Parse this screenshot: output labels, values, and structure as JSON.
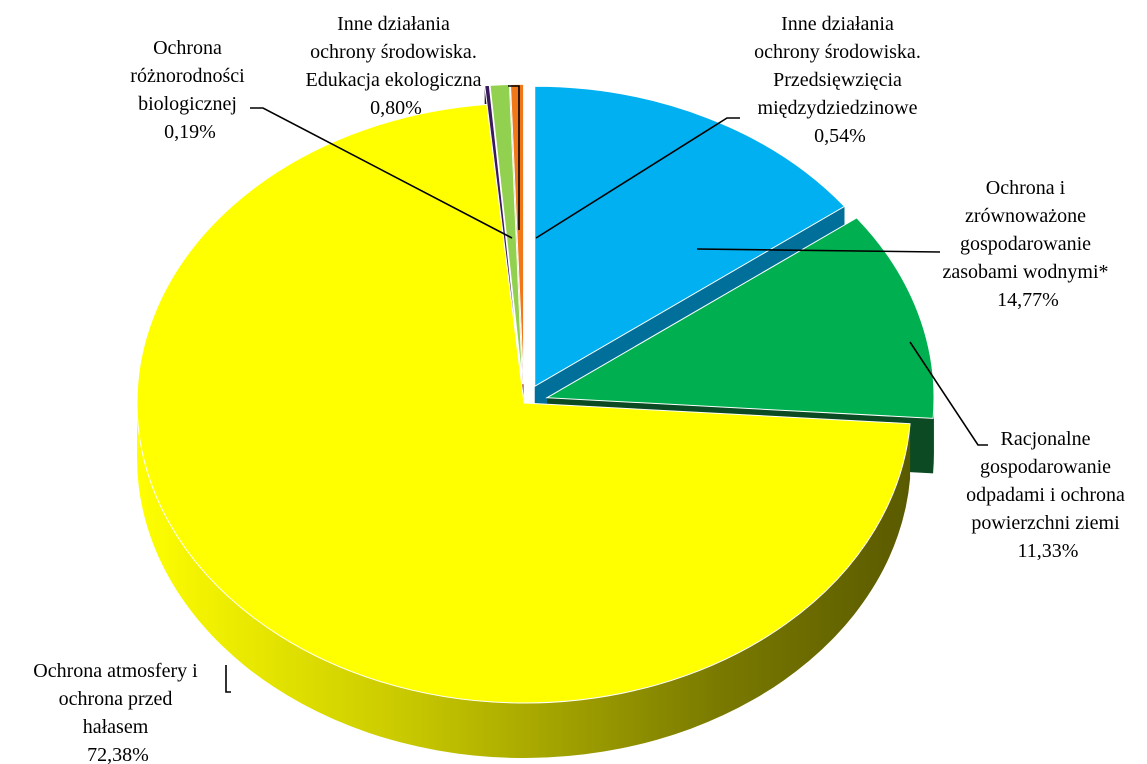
{
  "chart_data": {
    "type": "pie",
    "title": "",
    "slices": [
      {
        "label_lines": [
          "Ochrona i",
          "zrównoważone",
          "gospodarowanie",
          "zasobami wodnymi*"
        ],
        "value_text": "14,77%",
        "value": 14.77,
        "color": "#00B0F0",
        "side_color": "#00709A",
        "exploded": true
      },
      {
        "label_lines": [
          "Racjonalne",
          "gospodarowanie",
          "odpadami i ochrona",
          "powierzchni ziemi"
        ],
        "value_text": "11,33%",
        "value": 11.33,
        "color": "#00B050",
        "side_color": "#0B4A22",
        "exploded": true
      },
      {
        "label_lines": [
          "Ochrona atmosfery i",
          "ochrona przed",
          "hałasem"
        ],
        "value_text": "72,38%",
        "value": 72.38,
        "color": "#FFFF00",
        "side_color": "#A8A800",
        "exploded": false
      },
      {
        "label_lines": [
          "Ochrona",
          "różnorodności",
          "biologicznej"
        ],
        "value_text": "0,19%",
        "value": 0.19,
        "color": "#3A1A5C",
        "side_color": "#1E0D30",
        "exploded": true
      },
      {
        "label_lines": [
          "Inne działania",
          "ochrony środowiska.",
          "Edukacja ekologiczna"
        ],
        "value_text": "0,80%",
        "value": 0.8,
        "color": "#92D050",
        "side_color": "#557A2C",
        "exploded": true
      },
      {
        "label_lines": [
          "Inne działania",
          "ochrony środowiska.",
          "Przedsięwzięcia",
          "międzydziedzinowe"
        ],
        "value_text": "0,54%",
        "value": 0.54,
        "color": "#F07818",
        "side_color": "#A04A08",
        "exploded": true
      }
    ]
  }
}
